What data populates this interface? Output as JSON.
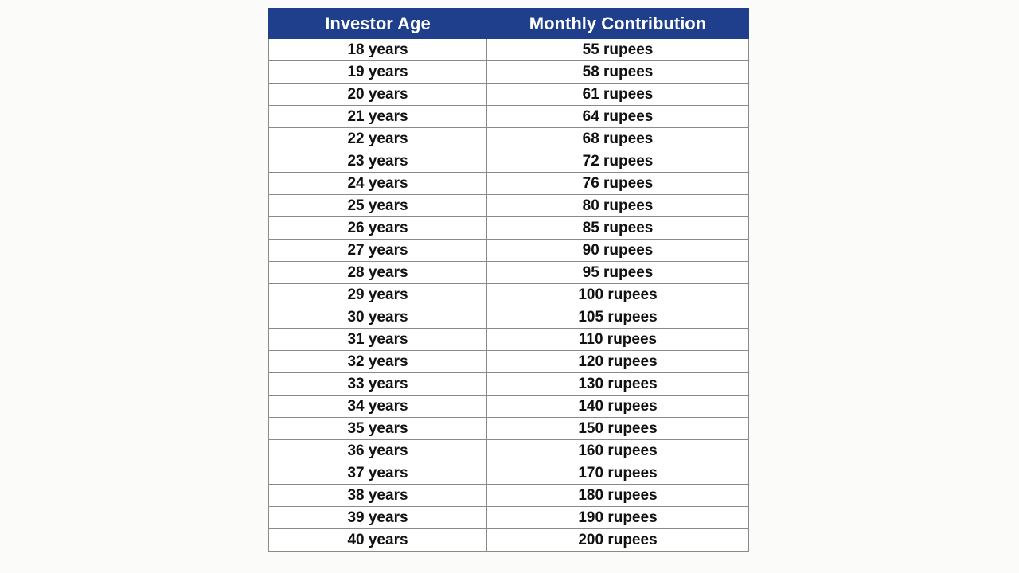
{
  "table": {
    "headers": [
      "Investor Age",
      "Monthly Contribution"
    ],
    "rows": [
      [
        "18 years",
        "55 rupees"
      ],
      [
        "19 years",
        "58 rupees"
      ],
      [
        "20 years",
        "61 rupees"
      ],
      [
        "21 years",
        "64 rupees"
      ],
      [
        "22 years",
        "68 rupees"
      ],
      [
        "23 years",
        "72 rupees"
      ],
      [
        "24 years",
        "76 rupees"
      ],
      [
        "25 years",
        "80 rupees"
      ],
      [
        "26 years",
        "85 rupees"
      ],
      [
        "27 years",
        "90 rupees"
      ],
      [
        "28 years",
        "95 rupees"
      ],
      [
        "29 years",
        "100 rupees"
      ],
      [
        "30 years",
        "105 rupees"
      ],
      [
        "31 years",
        "110 rupees"
      ],
      [
        "32 years",
        "120 rupees"
      ],
      [
        "33 years",
        "130 rupees"
      ],
      [
        "34 years",
        "140 rupees"
      ],
      [
        "35 years",
        "150 rupees"
      ],
      [
        "36 years",
        "160 rupees"
      ],
      [
        "37 years",
        "170 rupees"
      ],
      [
        "38 years",
        "180 rupees"
      ],
      [
        "39 years",
        "190 rupees"
      ],
      [
        "40 years",
        "200 rupees"
      ]
    ]
  }
}
